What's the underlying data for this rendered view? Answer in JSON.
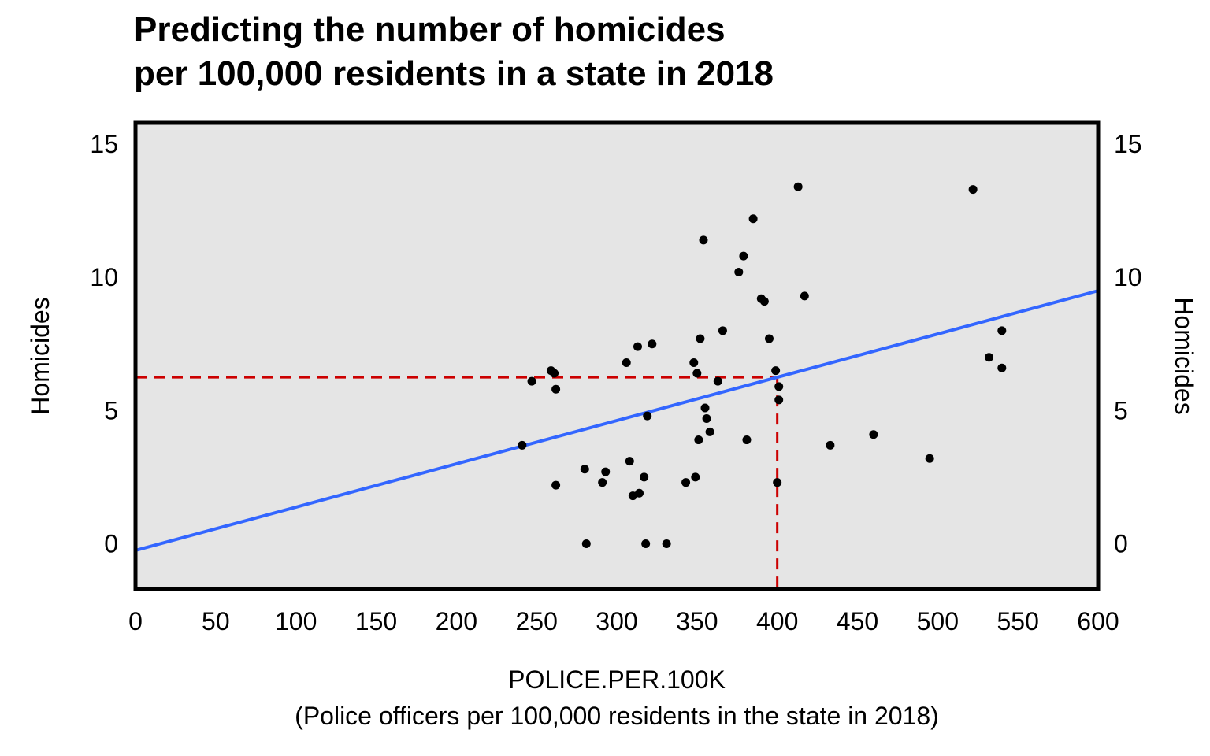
{
  "chart_data": {
    "type": "scatter",
    "title_lines": [
      "Predicting the number of homicides",
      "per 100,000 residents in a state in 2018"
    ],
    "xlabel": "POLICE.PER.100K",
    "xlabel_sub": "(Police officers per 100,000 residents in the state in 2018)",
    "ylabel_left": "Homicides",
    "ylabel_right": "Homicides",
    "xlim": [
      0,
      600
    ],
    "ylim": [
      -1.7,
      15.8
    ],
    "x_ticks": [
      0,
      50,
      100,
      150,
      200,
      250,
      300,
      350,
      400,
      450,
      500,
      550,
      600
    ],
    "y_ticks": [
      0,
      5,
      10,
      15
    ],
    "background": "#e5e5e5",
    "point_color": "#000000",
    "series": [
      {
        "type": "points",
        "x": [
          247,
          259,
          261,
          262,
          241,
          262,
          281,
          280,
          293,
          291,
          310,
          318,
          317,
          314,
          308,
          306,
          313,
          322,
          319,
          331,
          343,
          349,
          348,
          351,
          350,
          352,
          354,
          355,
          358,
          356,
          363,
          366,
          376,
          379,
          381,
          385,
          390,
          392,
          395,
          399,
          400,
          401,
          401,
          413,
          417,
          433,
          460,
          495,
          522,
          532,
          540,
          540
        ],
        "y": [
          6.1,
          6.5,
          6.4,
          5.8,
          3.7,
          2.2,
          0.0,
          2.8,
          2.7,
          2.3,
          1.8,
          0.0,
          2.5,
          1.9,
          3.1,
          6.8,
          7.4,
          7.5,
          4.8,
          0.0,
          2.3,
          2.5,
          6.8,
          3.9,
          6.4,
          7.7,
          11.4,
          5.1,
          4.2,
          4.7,
          6.1,
          8.0,
          10.2,
          10.8,
          3.9,
          12.2,
          9.2,
          9.1,
          7.7,
          6.5,
          2.3,
          5.9,
          5.4,
          13.4,
          9.3,
          3.7,
          4.1,
          3.2,
          13.3,
          7.0,
          6.6,
          8.0
        ]
      },
      {
        "type": "line",
        "name": "regression",
        "x": [
          0,
          600
        ],
        "y": [
          -0.25,
          9.5
        ],
        "color": "#3366ff"
      },
      {
        "type": "guide",
        "name": "prediction",
        "x": 400,
        "y": 6.25,
        "color": "#cc0000"
      }
    ]
  }
}
